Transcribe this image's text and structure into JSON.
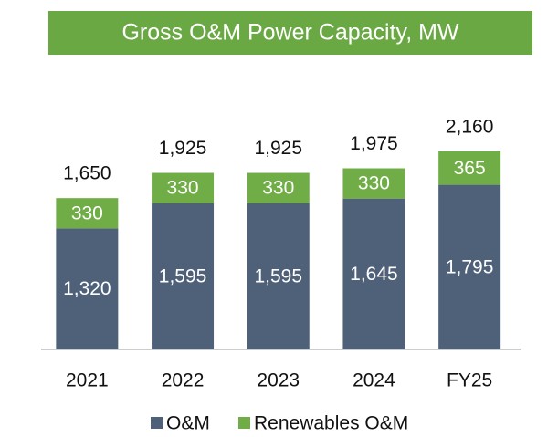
{
  "chart_data": {
    "type": "stacked_bar",
    "title": "Gross O&M Power Capacity, MW",
    "categories": [
      "2021",
      "2022",
      "2023",
      "2024",
      "FY25"
    ],
    "series": [
      {
        "name": "O&M",
        "color": "#4f6079",
        "values": [
          1320,
          1595,
          1595,
          1645,
          1795
        ],
        "value_labels": [
          "1,320",
          "1,595",
          "1,595",
          "1,645",
          "1,795"
        ]
      },
      {
        "name": "Renewables O&M",
        "color": "#70ad47",
        "values": [
          330,
          330,
          330,
          330,
          365
        ],
        "value_labels": [
          "330",
          "330",
          "330",
          "330",
          "365"
        ]
      }
    ],
    "total_labels": [
      "1,650",
      "1,925",
      "1,925",
      "1,975",
      "2,160"
    ],
    "legend": "bottom"
  }
}
